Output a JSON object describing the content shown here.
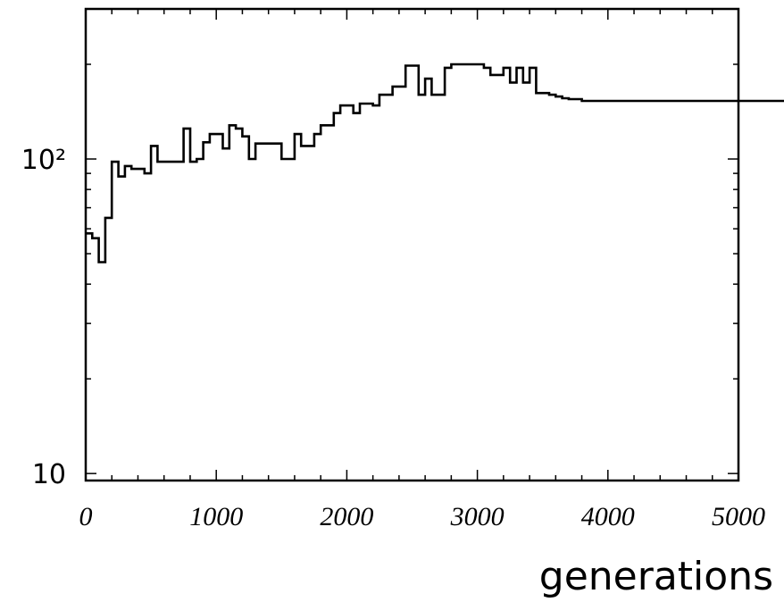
{
  "chart_data": {
    "type": "histogram",
    "xlabel": "generations",
    "ylabel": "",
    "xlim": [
      0,
      5000
    ],
    "ylim": [
      9.5,
      300
    ],
    "yscale": "log",
    "grid": false,
    "x_ticks": [
      {
        "value": 0,
        "label": "0"
      },
      {
        "value": 1000,
        "label": "1000"
      },
      {
        "value": 2000,
        "label": "2000"
      },
      {
        "value": 3000,
        "label": "3000"
      },
      {
        "value": 4000,
        "label": "4000"
      },
      {
        "value": 5000,
        "label": "5000"
      }
    ],
    "y_ticks": [
      {
        "value": 10,
        "label": "10"
      },
      {
        "value": 100,
        "label": "10²"
      }
    ],
    "x_minor_step": 200,
    "bin_width": 50,
    "series": [
      {
        "values": [
          58,
          56,
          47,
          65,
          98,
          88,
          95,
          93,
          93,
          90,
          110,
          98,
          98,
          98,
          98,
          125,
          98,
          100,
          113,
          120,
          120,
          108,
          128,
          125,
          118,
          100,
          112,
          112,
          112,
          112,
          100,
          100,
          120,
          110,
          110,
          120,
          128,
          128,
          140,
          148,
          148,
          140,
          150,
          150,
          148,
          160,
          160,
          170,
          170,
          198,
          198,
          160,
          180,
          160,
          160,
          195,
          200,
          200,
          200,
          200,
          200,
          195,
          185,
          185,
          195,
          175,
          195,
          175,
          195,
          162,
          162,
          160,
          158,
          156,
          155,
          155,
          153,
          153,
          153,
          153,
          153,
          153,
          153,
          153,
          153,
          153,
          153,
          153,
          153,
          153,
          153,
          153,
          153,
          153,
          153,
          153,
          153,
          153,
          153,
          153,
          153,
          153,
          153,
          153,
          153,
          153,
          153,
          153,
          153,
          153,
          153,
          153,
          153,
          153,
          153,
          153,
          153,
          153,
          153,
          153,
          153,
          153,
          153,
          153,
          153,
          153,
          153,
          153,
          153,
          153,
          153,
          153,
          153,
          153,
          153,
          153,
          153,
          153,
          153,
          153,
          153,
          153,
          153,
          153,
          153,
          153,
          153,
          153,
          153,
          153,
          153,
          153,
          153,
          153,
          153,
          153,
          153,
          153,
          153,
          153,
          153,
          153,
          153,
          153,
          153,
          153,
          153,
          153,
          153,
          153,
          153,
          153,
          153,
          153,
          153,
          153,
          153,
          153,
          153,
          153,
          153,
          153,
          153,
          153,
          153,
          153,
          153,
          153,
          153,
          153,
          153,
          153,
          153,
          153,
          153,
          153,
          153,
          153,
          153,
          153
        ]
      }
    ]
  }
}
